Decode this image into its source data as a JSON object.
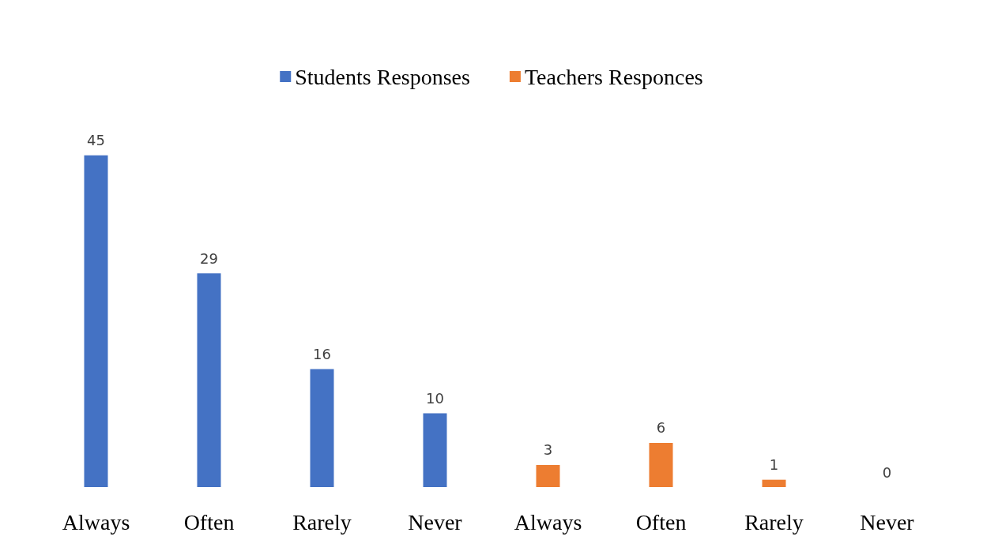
{
  "chart_data": {
    "type": "bar",
    "categories": [
      "Always",
      "Often",
      "Rarely",
      "Never",
      "Always",
      "Often",
      "Rarely",
      "Never"
    ],
    "series": [
      {
        "name": "Students Responses",
        "color": "#4472c4",
        "values": [
          45,
          29,
          16,
          10,
          null,
          null,
          null,
          null
        ]
      },
      {
        "name": "Teachers Responces",
        "color": "#ed7d31",
        "values": [
          null,
          null,
          null,
          null,
          3,
          6,
          1,
          0
        ]
      }
    ],
    "data_labels": true,
    "legend": "top",
    "grid": false,
    "tick_labels": "x"
  }
}
